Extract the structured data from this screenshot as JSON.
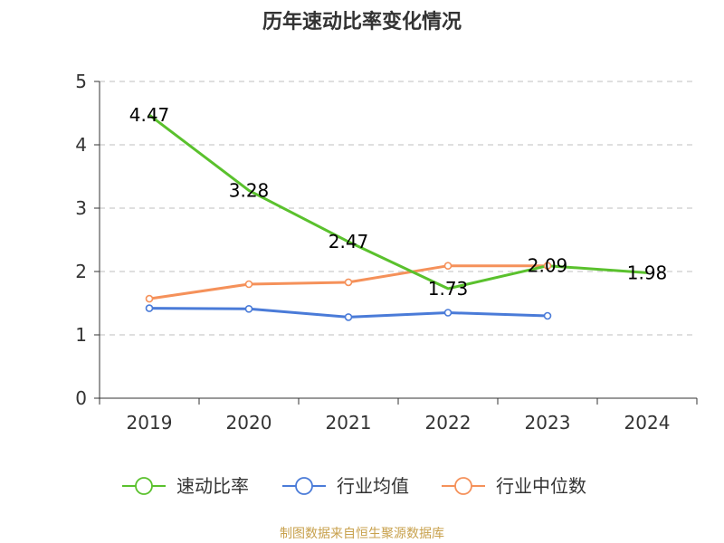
{
  "chart_data": {
    "type": "line",
    "title": "历年速动比率变化情况",
    "categories": [
      "2019",
      "2020",
      "2021",
      "2022",
      "2023",
      "2024"
    ],
    "ylim": [
      0,
      5
    ],
    "yticks": [
      0,
      1,
      2,
      3,
      4,
      5
    ],
    "grid": true,
    "legend_position": "bottom",
    "series": [
      {
        "name": "速动比率",
        "color": "#5ac12d",
        "values": [
          4.47,
          3.28,
          2.47,
          1.73,
          2.09,
          1.98
        ],
        "labels": [
          "4.47",
          "3.28",
          "2.47",
          "1.73",
          "2.09",
          "1.98"
        ],
        "show_labels": true,
        "markers": false
      },
      {
        "name": "行业均值",
        "color": "#4a7bd8",
        "values": [
          1.42,
          1.41,
          1.28,
          1.35,
          1.3,
          null
        ],
        "show_labels": false,
        "markers": true
      },
      {
        "name": "行业中位数",
        "color": "#f5915a",
        "values": [
          1.57,
          1.8,
          1.83,
          2.09,
          2.09,
          null
        ],
        "show_labels": false,
        "markers": true
      }
    ]
  },
  "footer": {
    "source": "制图数据来自恒生聚源数据库"
  }
}
